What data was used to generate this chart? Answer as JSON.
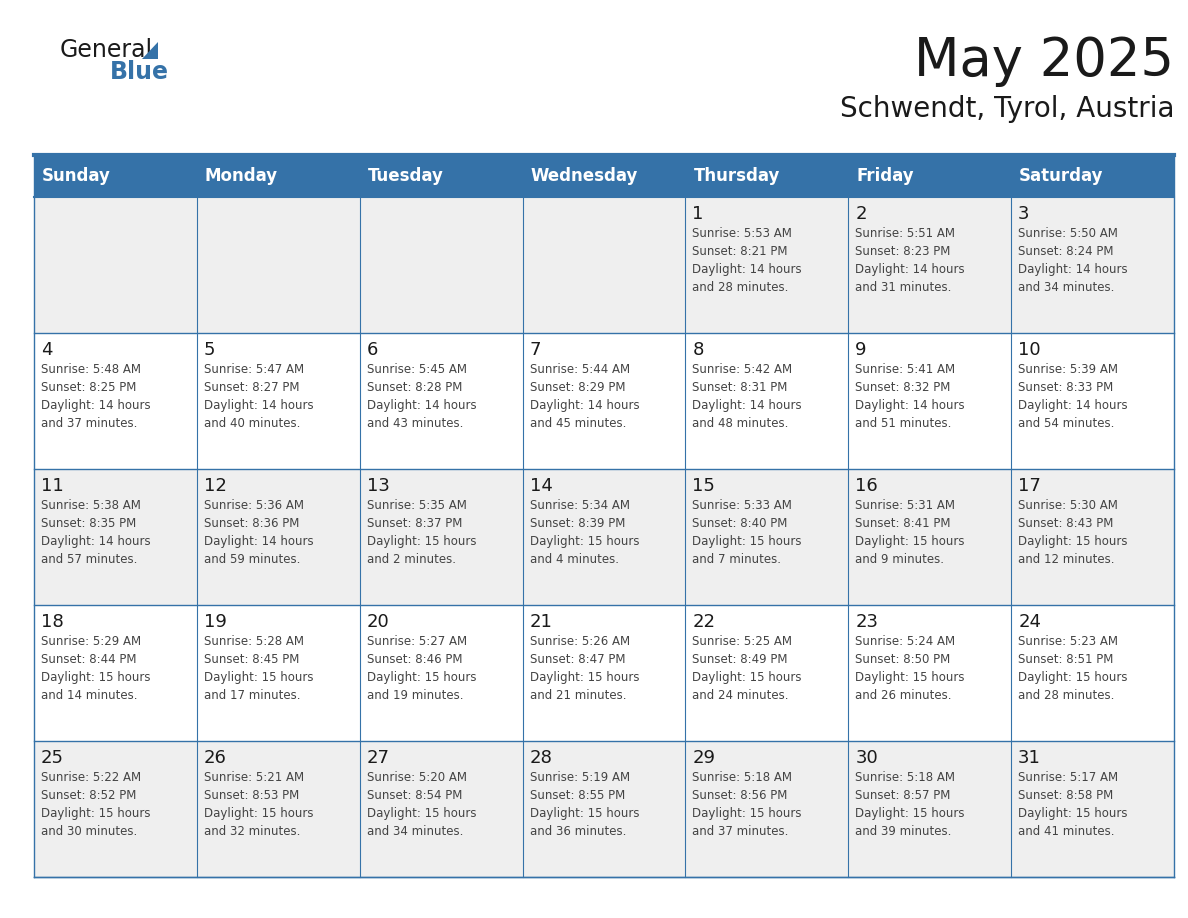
{
  "title": "May 2025",
  "subtitle": "Schwendt, Tyrol, Austria",
  "days_of_week": [
    "Sunday",
    "Monday",
    "Tuesday",
    "Wednesday",
    "Thursday",
    "Friday",
    "Saturday"
  ],
  "header_bg": "#3572A8",
  "header_text_color": "#FFFFFF",
  "row_bg_odd": "#EFEFEF",
  "row_bg_even": "#FFFFFF",
  "day_num_color": "#1a1a1a",
  "text_color": "#444444",
  "line_color": "#3572A8",
  "logo_dark": "#1a1a1a",
  "logo_blue": "#3572A8",
  "weeks": [
    [
      {
        "day": null,
        "info": ""
      },
      {
        "day": null,
        "info": ""
      },
      {
        "day": null,
        "info": ""
      },
      {
        "day": null,
        "info": ""
      },
      {
        "day": 1,
        "info": "Sunrise: 5:53 AM\nSunset: 8:21 PM\nDaylight: 14 hours\nand 28 minutes."
      },
      {
        "day": 2,
        "info": "Sunrise: 5:51 AM\nSunset: 8:23 PM\nDaylight: 14 hours\nand 31 minutes."
      },
      {
        "day": 3,
        "info": "Sunrise: 5:50 AM\nSunset: 8:24 PM\nDaylight: 14 hours\nand 34 minutes."
      }
    ],
    [
      {
        "day": 4,
        "info": "Sunrise: 5:48 AM\nSunset: 8:25 PM\nDaylight: 14 hours\nand 37 minutes."
      },
      {
        "day": 5,
        "info": "Sunrise: 5:47 AM\nSunset: 8:27 PM\nDaylight: 14 hours\nand 40 minutes."
      },
      {
        "day": 6,
        "info": "Sunrise: 5:45 AM\nSunset: 8:28 PM\nDaylight: 14 hours\nand 43 minutes."
      },
      {
        "day": 7,
        "info": "Sunrise: 5:44 AM\nSunset: 8:29 PM\nDaylight: 14 hours\nand 45 minutes."
      },
      {
        "day": 8,
        "info": "Sunrise: 5:42 AM\nSunset: 8:31 PM\nDaylight: 14 hours\nand 48 minutes."
      },
      {
        "day": 9,
        "info": "Sunrise: 5:41 AM\nSunset: 8:32 PM\nDaylight: 14 hours\nand 51 minutes."
      },
      {
        "day": 10,
        "info": "Sunrise: 5:39 AM\nSunset: 8:33 PM\nDaylight: 14 hours\nand 54 minutes."
      }
    ],
    [
      {
        "day": 11,
        "info": "Sunrise: 5:38 AM\nSunset: 8:35 PM\nDaylight: 14 hours\nand 57 minutes."
      },
      {
        "day": 12,
        "info": "Sunrise: 5:36 AM\nSunset: 8:36 PM\nDaylight: 14 hours\nand 59 minutes."
      },
      {
        "day": 13,
        "info": "Sunrise: 5:35 AM\nSunset: 8:37 PM\nDaylight: 15 hours\nand 2 minutes."
      },
      {
        "day": 14,
        "info": "Sunrise: 5:34 AM\nSunset: 8:39 PM\nDaylight: 15 hours\nand 4 minutes."
      },
      {
        "day": 15,
        "info": "Sunrise: 5:33 AM\nSunset: 8:40 PM\nDaylight: 15 hours\nand 7 minutes."
      },
      {
        "day": 16,
        "info": "Sunrise: 5:31 AM\nSunset: 8:41 PM\nDaylight: 15 hours\nand 9 minutes."
      },
      {
        "day": 17,
        "info": "Sunrise: 5:30 AM\nSunset: 8:43 PM\nDaylight: 15 hours\nand 12 minutes."
      }
    ],
    [
      {
        "day": 18,
        "info": "Sunrise: 5:29 AM\nSunset: 8:44 PM\nDaylight: 15 hours\nand 14 minutes."
      },
      {
        "day": 19,
        "info": "Sunrise: 5:28 AM\nSunset: 8:45 PM\nDaylight: 15 hours\nand 17 minutes."
      },
      {
        "day": 20,
        "info": "Sunrise: 5:27 AM\nSunset: 8:46 PM\nDaylight: 15 hours\nand 19 minutes."
      },
      {
        "day": 21,
        "info": "Sunrise: 5:26 AM\nSunset: 8:47 PM\nDaylight: 15 hours\nand 21 minutes."
      },
      {
        "day": 22,
        "info": "Sunrise: 5:25 AM\nSunset: 8:49 PM\nDaylight: 15 hours\nand 24 minutes."
      },
      {
        "day": 23,
        "info": "Sunrise: 5:24 AM\nSunset: 8:50 PM\nDaylight: 15 hours\nand 26 minutes."
      },
      {
        "day": 24,
        "info": "Sunrise: 5:23 AM\nSunset: 8:51 PM\nDaylight: 15 hours\nand 28 minutes."
      }
    ],
    [
      {
        "day": 25,
        "info": "Sunrise: 5:22 AM\nSunset: 8:52 PM\nDaylight: 15 hours\nand 30 minutes."
      },
      {
        "day": 26,
        "info": "Sunrise: 5:21 AM\nSunset: 8:53 PM\nDaylight: 15 hours\nand 32 minutes."
      },
      {
        "day": 27,
        "info": "Sunrise: 5:20 AM\nSunset: 8:54 PM\nDaylight: 15 hours\nand 34 minutes."
      },
      {
        "day": 28,
        "info": "Sunrise: 5:19 AM\nSunset: 8:55 PM\nDaylight: 15 hours\nand 36 minutes."
      },
      {
        "day": 29,
        "info": "Sunrise: 5:18 AM\nSunset: 8:56 PM\nDaylight: 15 hours\nand 37 minutes."
      },
      {
        "day": 30,
        "info": "Sunrise: 5:18 AM\nSunset: 8:57 PM\nDaylight: 15 hours\nand 39 minutes."
      },
      {
        "day": 31,
        "info": "Sunrise: 5:17 AM\nSunset: 8:58 PM\nDaylight: 15 hours\nand 41 minutes."
      }
    ]
  ]
}
